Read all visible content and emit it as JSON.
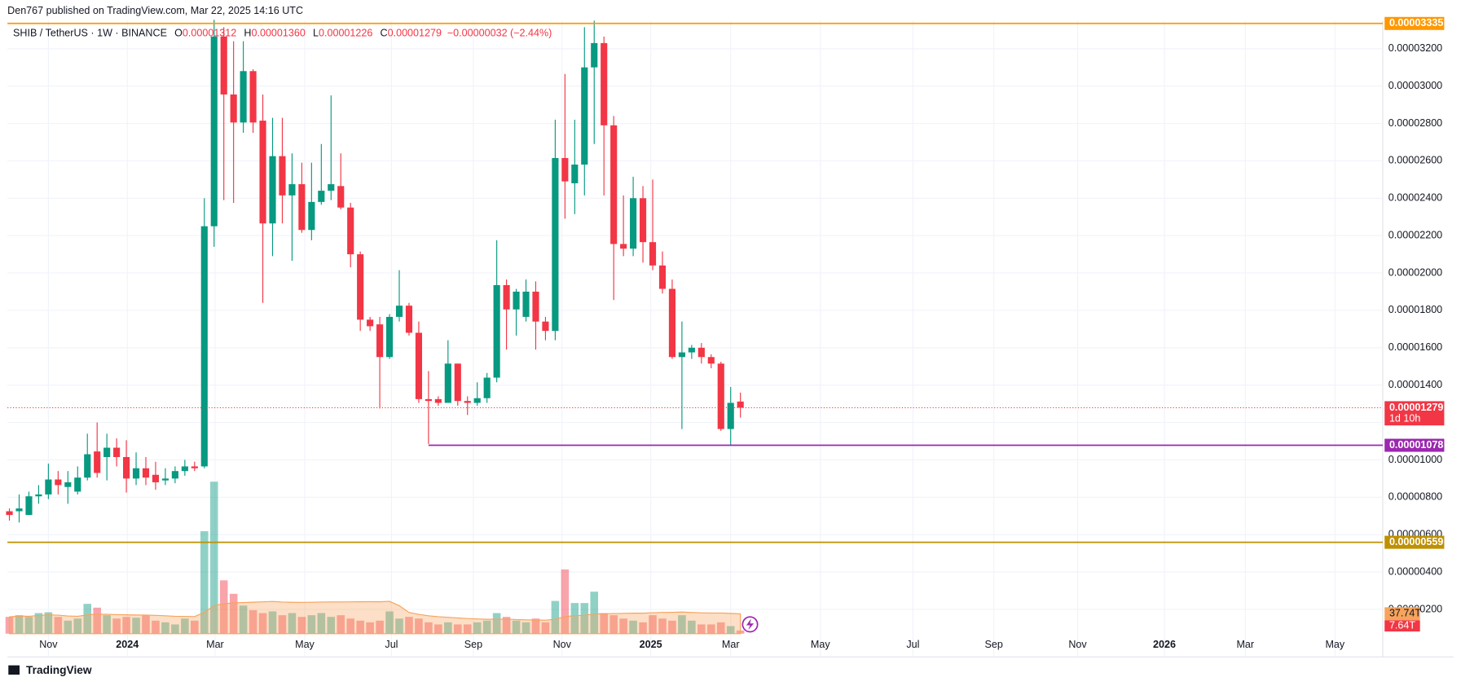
{
  "header": "Den767 published on TradingView.com, Mar 22, 2025 14:16 UTC",
  "footer": "TradingView",
  "chart_data": {
    "type": "candlestick",
    "legend": {
      "symbol": "SHIB / TetherUS · 1W · BINANCE",
      "items": [
        {
          "label": "O",
          "value": "0.00001312"
        },
        {
          "label": "H",
          "value": "0.00001360"
        },
        {
          "label": "L",
          "value": "0.00001226"
        },
        {
          "label": "C",
          "value": "0.00001279"
        }
      ],
      "change": "−0.00000032 (−2.44%)"
    },
    "up_color": "#089981",
    "down_color": "#f23645",
    "open": [
      7.25e-06,
      7.25e-06,
      7.05e-06,
      8.05e-06,
      8.15e-06,
      8.95e-06,
      8.55e-06,
      8.3e-06,
      9.05e-06,
      1.045e-05,
      1.015e-05,
      1.065e-05,
      1.015e-05,
      9e-06,
      9.55e-06,
      9.2e-06,
      8.9e-06,
      9e-06,
      9.4e-06,
      9.65e-06,
      9.65e-06,
      2.25e-05,
      3.265e-05,
      2.955e-05,
      2.805e-05,
      3.08e-05,
      2.815e-05,
      2.265e-05,
      2.625e-05,
      2.415e-05,
      2.475e-05,
      2.23e-05,
      2.38e-05,
      2.44e-05,
      2.465e-05,
      2.35e-05,
      2.1e-05,
      1.75e-05,
      1.725e-05,
      1.55e-05,
      1.765e-05,
      1.825e-05,
      1.68e-05,
      1.325e-05,
      1.325e-05,
      1.305e-05,
      1.515e-05,
      1.315e-05,
      1.305e-05,
      1.33e-05,
      1.44e-05,
      1.935e-05,
      1.805e-05,
      1.765e-05,
      1.9e-05,
      1.74e-05,
      1.69e-05,
      2.615e-05,
      2.48e-05,
      2.58e-05,
      3.1e-05,
      3.23e-05,
      2.79e-05,
      2.155e-05,
      2.13e-05,
      2.4e-05,
      2.165e-05,
      2.04e-05,
      1.915e-05,
      1.55e-05,
      1.575e-05,
      1.6e-05,
      1.55e-05,
      1.515e-05,
      1.165e-05,
      1.312e-05
    ],
    "high": [
      7.4e-06,
      8.15e-06,
      8.3e-06,
      8.65e-06,
      9.8e-06,
      9.4e-06,
      9.4e-06,
      9.65e-06,
      1.14e-05,
      1.2e-05,
      1.14e-05,
      1.115e-05,
      1.105e-05,
      1.04e-05,
      1.015e-05,
      9.9e-06,
      9.55e-06,
      9.65e-06,
      1e-05,
      9.9e-06,
      2.4e-05,
      3.355e-05,
      3.315e-05,
      3.24e-05,
      3.24e-05,
      3.09e-05,
      2.955e-05,
      2.83e-05,
      2.83e-05,
      2.64e-05,
      2.59e-05,
      2.59e-05,
      2.69e-05,
      2.95e-05,
      2.64e-05,
      2.375e-05,
      2.115e-05,
      1.765e-05,
      1.765e-05,
      1.78e-05,
      2.015e-05,
      1.84e-05,
      1.74e-05,
      1.475e-05,
      1.34e-05,
      1.64e-05,
      1.515e-05,
      1.34e-05,
      1.415e-05,
      1.465e-05,
      2.175e-05,
      1.965e-05,
      1.915e-05,
      1.965e-05,
      1.955e-05,
      1.765e-05,
      2.82e-05,
      3.065e-05,
      2.82e-05,
      3.315e-05,
      3.35e-05,
      3.265e-05,
      2.84e-05,
      2.415e-05,
      2.515e-05,
      2.465e-05,
      2.5e-05,
      2.115e-05,
      1.965e-05,
      1.74e-05,
      1.615e-05,
      1.625e-05,
      1.565e-05,
      1.525e-05,
      1.39e-05,
      1.36e-05
    ],
    "low": [
      6.75e-06,
      6.65e-06,
      7.05e-06,
      7.65e-06,
      7.9e-06,
      8.15e-06,
      7.65e-06,
      8.15e-06,
      8.9e-06,
      9.05e-06,
      8.9e-06,
      9.65e-06,
      8.25e-06,
      8.65e-06,
      8.65e-06,
      8.4e-06,
      8.65e-06,
      8.75e-06,
      9.15e-06,
      9.4e-06,
      9.55e-06,
      2.14e-05,
      2.39e-05,
      2.375e-05,
      2.75e-05,
      2.75e-05,
      1.84e-05,
      2.09e-05,
      2.265e-05,
      2.065e-05,
      2.215e-05,
      2.175e-05,
      2.365e-05,
      2.39e-05,
      2.34e-05,
      2.03e-05,
      1.69e-05,
      1.69e-05,
      1.275e-05,
      1.54e-05,
      1.74e-05,
      1.665e-05,
      1.305e-05,
      1.085e-05,
      1.29e-05,
      1.305e-05,
      1.29e-05,
      1.24e-05,
      1.29e-05,
      1.305e-05,
      1.415e-05,
      1.59e-05,
      1.665e-05,
      1.74e-05,
      1.59e-05,
      1.64e-05,
      1.64e-05,
      2.29e-05,
      2.315e-05,
      2.415e-05,
      2.69e-05,
      2.415e-05,
      1.855e-05,
      2.09e-05,
      2.09e-05,
      2.055e-05,
      2.015e-05,
      1.89e-05,
      1.54e-05,
      1.165e-05,
      1.54e-05,
      1.515e-05,
      1.49e-05,
      1.155e-05,
      1.078e-05,
      1.226e-05
    ],
    "close": [
      7.05e-06,
      7.4e-06,
      8.05e-06,
      8.15e-06,
      8.95e-06,
      8.65e-06,
      8.8e-06,
      9.05e-06,
      1.03e-05,
      9.3e-06,
      1.065e-05,
      1.015e-05,
      9e-06,
      9.55e-06,
      9.05e-06,
      8.8e-06,
      9e-06,
      9.4e-06,
      9.65e-06,
      9.55e-06,
      2.25e-05,
      3.265e-05,
      2.955e-05,
      2.805e-05,
      3.08e-05,
      2.805e-05,
      2.265e-05,
      2.625e-05,
      2.415e-05,
      2.475e-05,
      2.23e-05,
      2.38e-05,
      2.44e-05,
      2.475e-05,
      2.35e-05,
      2.1e-05,
      1.75e-05,
      1.715e-05,
      1.55e-05,
      1.765e-05,
      1.825e-05,
      1.68e-05,
      1.325e-05,
      1.315e-05,
      1.305e-05,
      1.515e-05,
      1.315e-05,
      1.305e-05,
      1.33e-05,
      1.44e-05,
      1.935e-05,
      1.805e-05,
      1.9e-05,
      1.9e-05,
      1.74e-05,
      1.69e-05,
      2.615e-05,
      2.49e-05,
      2.58e-05,
      3.1e-05,
      3.23e-05,
      2.79e-05,
      2.155e-05,
      2.13e-05,
      2.4e-05,
      2.165e-05,
      2.04e-05,
      1.915e-05,
      1.55e-05,
      1.575e-05,
      1.6e-05,
      1.55e-05,
      1.515e-05,
      1.165e-05,
      1.305e-05,
      1.279e-05
    ],
    "volume": [
      40,
      44,
      40,
      49,
      51,
      40,
      31,
      36,
      71,
      62,
      44,
      36,
      40,
      38,
      44,
      31,
      27,
      22,
      36,
      31,
      244,
      362,
      127,
      95,
      67,
      56,
      49,
      53,
      44,
      49,
      40,
      44,
      49,
      40,
      44,
      36,
      31,
      27,
      31,
      53,
      36,
      40,
      36,
      27,
      22,
      27,
      22,
      22,
      27,
      31,
      49,
      40,
      31,
      27,
      36,
      27,
      78,
      153,
      73,
      73,
      100,
      49,
      44,
      36,
      31,
      27,
      44,
      36,
      31,
      44,
      31,
      22,
      22,
      27,
      18,
      7.64
    ],
    "volume_last_label": "7.64T",
    "volume_ma": {
      "value": 37.74,
      "label": "37.74T",
      "color": "#f7a35c"
    },
    "volume_ylim": [
      0,
      1460
    ],
    "xlim": [
      -0.2,
      140.9
    ],
    "xticks": [
      {
        "value": 4,
        "label": "Nov"
      },
      {
        "value": 12.1,
        "label": "2024"
      },
      {
        "value": 21.1,
        "label": "Mar"
      },
      {
        "value": 30.3,
        "label": "May"
      },
      {
        "value": 39.2,
        "label": "Jul"
      },
      {
        "value": 47.6,
        "label": "Sep"
      },
      {
        "value": 56.7,
        "label": "Nov"
      },
      {
        "value": 65.8,
        "label": "2025"
      },
      {
        "value": 74,
        "label": "Mar"
      },
      {
        "value": 83.2,
        "label": "May"
      },
      {
        "value": 92.7,
        "label": "Jul"
      },
      {
        "value": 101,
        "label": "Sep"
      },
      {
        "value": 109.6,
        "label": "Nov"
      },
      {
        "value": 118.5,
        "label": "2026"
      },
      {
        "value": 126.8,
        "label": "Mar"
      },
      {
        "value": 136,
        "label": "May"
      }
    ],
    "ylim": [
      7e-07,
      3.35e-05
    ],
    "yticks": [
      {
        "value": 2e-06,
        "label": "0.00000200"
      },
      {
        "value": 4e-06,
        "label": "0.00000400"
      },
      {
        "value": 6e-06,
        "label": "0.00000600"
      },
      {
        "value": 8e-06,
        "label": "0.00000800"
      },
      {
        "value": 1e-05,
        "label": "0.00001000"
      },
      {
        "value": 1.2e-05,
        "label": "0.00001200"
      },
      {
        "value": 1.4e-05,
        "label": "0.00001400"
      },
      {
        "value": 1.6e-05,
        "label": "0.00001600"
      },
      {
        "value": 1.8e-05,
        "label": "0.00001800"
      },
      {
        "value": 2e-05,
        "label": "0.00002000"
      },
      {
        "value": 2.2e-05,
        "label": "0.00002200"
      },
      {
        "value": 2.4e-05,
        "label": "0.00002400"
      },
      {
        "value": 2.6e-05,
        "label": "0.00002600"
      },
      {
        "value": 2.8e-05,
        "label": "0.00002800"
      },
      {
        "value": 3e-05,
        "label": "0.00003000"
      },
      {
        "value": 3.2e-05,
        "label": "0.00003200"
      }
    ],
    "grid": true,
    "levels": [
      {
        "value": 3.335e-05,
        "label": "0.00003335",
        "color": "#ff9800"
      },
      {
        "value": 1.078e-05,
        "label": "0.00001078",
        "color": "#9c27b0",
        "start": 43
      },
      {
        "value": 5.59e-06,
        "label": "0.00000559",
        "color": "#bf9000"
      }
    ],
    "last_price": {
      "value": 1.279e-05,
      "label": "0.00001279",
      "countdown": "1d 10h",
      "color": "#f23645"
    }
  }
}
